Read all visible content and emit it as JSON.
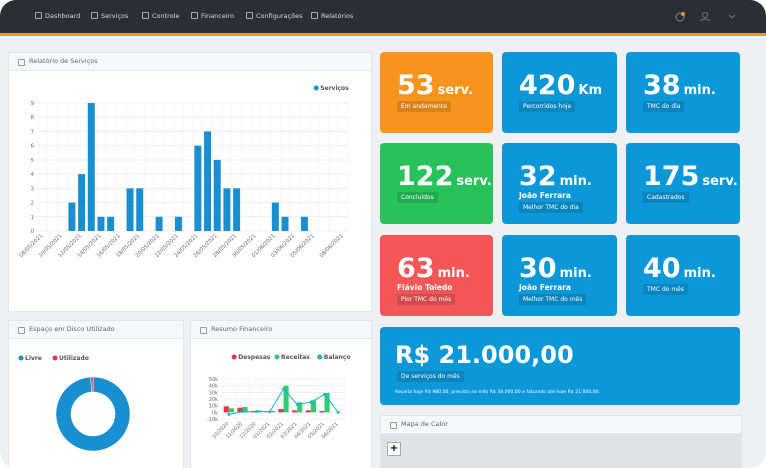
{
  "nav": {
    "items": [
      "Dashboard",
      "Serviços",
      "Controle",
      "Financeiro",
      "Configurações",
      "Relatórios"
    ]
  },
  "service_report": {
    "title": "Relatório de Serviços",
    "chart_data": {
      "type": "bar",
      "categories": [
        "08/05/2021",
        null,
        "10/05/2021",
        null,
        "12/05/2021",
        null,
        "14/05/2021",
        null,
        "16/05/2021",
        null,
        "18/05/2021",
        null,
        "20/05/2021",
        null,
        "22/05/2021",
        null,
        "24/05/2021",
        null,
        "26/05/2021",
        null,
        "28/05/2021",
        null,
        "30/05/2021",
        null,
        "01/06/2021",
        null,
        "03/06/2021",
        null,
        "05/06/2021",
        null,
        null,
        "08/06/2021"
      ],
      "series": [
        {
          "name": "Serviços",
          "color": "#1a8fd0",
          "values": [
            0,
            0,
            0,
            2,
            4,
            9,
            1,
            1,
            0,
            3,
            3,
            0,
            1,
            0,
            1,
            0,
            6,
            7,
            5,
            3,
            3,
            0,
            0,
            0,
            2,
            1,
            0,
            1,
            0,
            0,
            0,
            0
          ]
        }
      ],
      "ylim": [
        0,
        9
      ],
      "yticks": [
        0,
        1,
        2,
        3,
        4,
        5,
        6,
        7,
        8,
        9
      ],
      "grid": true,
      "legend": "top-right"
    }
  },
  "disk": {
    "title": "Espaço em Disco Utilizado",
    "chart_data": {
      "type": "pie",
      "donut": true,
      "categories": [
        "Livre",
        "Utilizado"
      ],
      "values": [
        99,
        1
      ],
      "colors": [
        "#1a8fd0",
        "#e8354a"
      ],
      "legend": "top-left"
    }
  },
  "finance": {
    "title": "Resumo Financeiro",
    "chart_data": {
      "type": "bar",
      "categories": [
        "10/2020",
        "11/2020",
        "12/2020",
        "01/2021",
        "02/2021",
        "03/2021",
        "04/2021",
        "05/2021",
        "06/2021"
      ],
      "series": [
        {
          "name": "Despesas",
          "color": "#e8354a",
          "values": [
            9000,
            7000,
            2000,
            1000,
            5000,
            3000,
            3000,
            2000,
            0
          ]
        },
        {
          "name": "Receitas",
          "color": "#2ecc71",
          "values": [
            6000,
            8000,
            3000,
            2000,
            40000,
            15000,
            18000,
            29000,
            0
          ]
        },
        {
          "name": "Balanço",
          "color": "#1ab0d0",
          "type": "line",
          "values": [
            -3000,
            1000,
            1000,
            1000,
            35000,
            12000,
            15000,
            27000,
            0
          ]
        }
      ],
      "ylim": [
        -10000,
        50000
      ],
      "yticks": [
        {
          "value": -10000,
          "label": "-10k"
        },
        {
          "value": 0,
          "label": "0k"
        },
        {
          "value": 10000,
          "label": "10k"
        },
        {
          "value": 20000,
          "label": "20k"
        },
        {
          "value": 30000,
          "label": "30k"
        },
        {
          "value": 40000,
          "label": "40k"
        },
        {
          "value": 50000,
          "label": "50k"
        }
      ],
      "grid": true,
      "legend": "top-right"
    }
  },
  "tiles": [
    {
      "value": "53",
      "unit": "serv.",
      "caption": "Em andamento",
      "color": "#f7941d"
    },
    {
      "value": "420",
      "unit": "Km",
      "caption": "Percorridos hoje",
      "color": "#0c98d8"
    },
    {
      "value": "38",
      "unit": "min.",
      "caption": "TMC do dia",
      "color": "#0c98d8"
    },
    {
      "value": "122",
      "unit": "serv.",
      "caption": "Concluídos",
      "color": "#27c25a"
    },
    {
      "value": "32",
      "unit": "min.",
      "name": "João Ferrara",
      "caption": "Melhor TMC do dia",
      "color": "#0c98d8"
    },
    {
      "value": "175",
      "unit": "serv.",
      "caption": "Cadastrados",
      "color": "#0c98d8"
    },
    {
      "value": "63",
      "unit": "min.",
      "name": "Flávio Toledo",
      "caption": "Pior TMC do mês",
      "color": "#f25656"
    },
    {
      "value": "30",
      "unit": "min.",
      "name": "João Ferrara",
      "caption": "Melhor TMC do mês",
      "color": "#0c98d8"
    },
    {
      "value": "40",
      "unit": "min.",
      "caption": "TMC do mês",
      "color": "#0c98d8"
    }
  ],
  "revenue": {
    "value": "R$ 21.000,00",
    "caption": "De serviços do mês",
    "note": "Receita hoje R$ 980,00, previsto no mês R$ 38.000,00 e faturado até hoje R$ 21.000,00.",
    "color": "#0c98d8"
  },
  "heatmap": {
    "title": "Mapa de Calor",
    "zoom": "+"
  }
}
